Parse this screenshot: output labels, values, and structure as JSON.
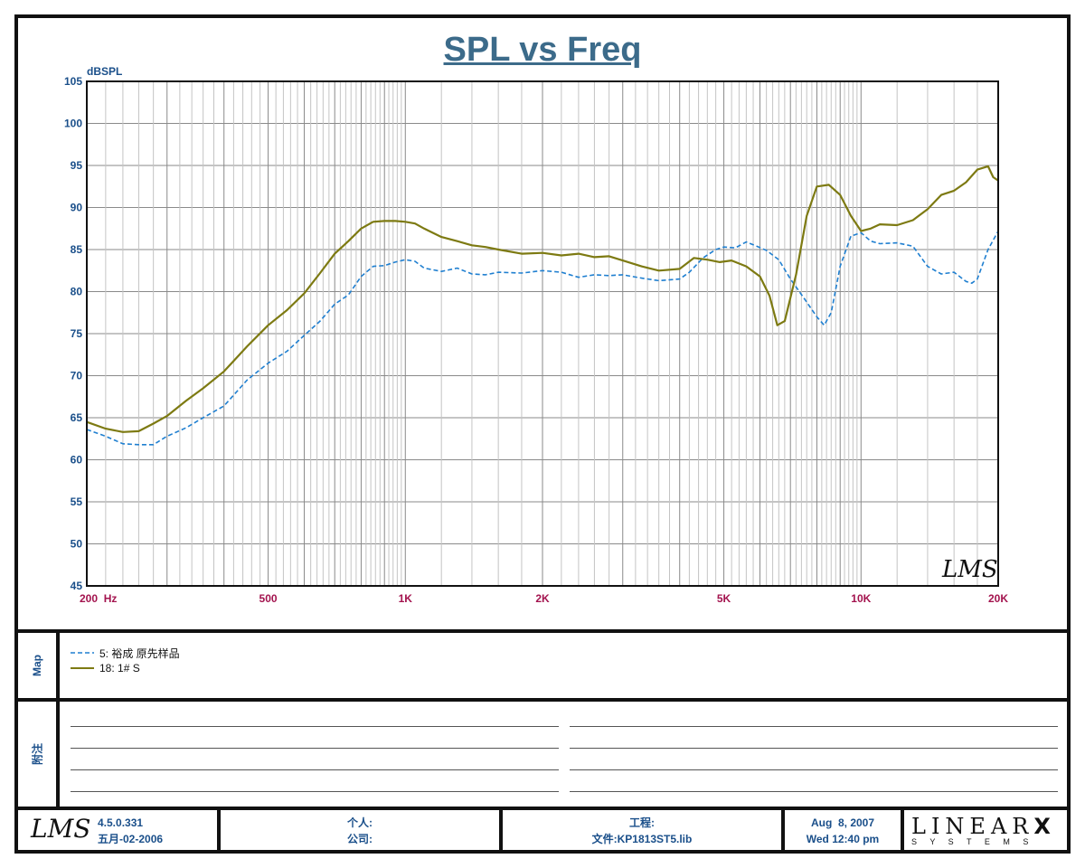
{
  "chart_data": {
    "type": "line",
    "title": "SPL vs Freq",
    "ylabel": "dBSPL",
    "xscale": "log",
    "xlim": [
      200,
      20000
    ],
    "ylim": [
      45,
      105
    ],
    "grid": true,
    "yticks": [
      "105",
      "100",
      "95",
      "90",
      "85",
      "80",
      "75",
      "70",
      "65",
      "60",
      "55",
      "50",
      "45"
    ],
    "xticks": [
      {
        "value": 200,
        "label": "200  Hz"
      },
      {
        "value": 500,
        "label": "500"
      },
      {
        "value": 1000,
        "label": "1K"
      },
      {
        "value": 2000,
        "label": "2K"
      },
      {
        "value": 5000,
        "label": "5K"
      },
      {
        "value": 10000,
        "label": "10K"
      },
      {
        "value": 20000,
        "label": "20K"
      }
    ],
    "series": [
      {
        "name": "5: 裕成 原先样品",
        "color": "#1f7fd0",
        "dash": true,
        "points": [
          [
            200,
            63.6
          ],
          [
            220,
            62.8
          ],
          [
            240,
            61.9
          ],
          [
            260,
            61.8
          ],
          [
            280,
            61.8
          ],
          [
            300,
            62.8
          ],
          [
            330,
            63.8
          ],
          [
            360,
            65.0
          ],
          [
            400,
            66.4
          ],
          [
            450,
            69.5
          ],
          [
            500,
            71.5
          ],
          [
            550,
            72.9
          ],
          [
            600,
            74.8
          ],
          [
            650,
            76.5
          ],
          [
            700,
            78.5
          ],
          [
            750,
            79.6
          ],
          [
            800,
            81.8
          ],
          [
            850,
            83.0
          ],
          [
            900,
            83.1
          ],
          [
            950,
            83.5
          ],
          [
            1000,
            83.8
          ],
          [
            1050,
            83.6
          ],
          [
            1100,
            82.8
          ],
          [
            1200,
            82.4
          ],
          [
            1300,
            82.8
          ],
          [
            1400,
            82.1
          ],
          [
            1500,
            82.0
          ],
          [
            1600,
            82.3
          ],
          [
            1800,
            82.2
          ],
          [
            2000,
            82.5
          ],
          [
            2200,
            82.3
          ],
          [
            2400,
            81.7
          ],
          [
            2600,
            82.0
          ],
          [
            2800,
            81.9
          ],
          [
            3000,
            82.0
          ],
          [
            3300,
            81.6
          ],
          [
            3600,
            81.3
          ],
          [
            4000,
            81.5
          ],
          [
            4200,
            82.3
          ],
          [
            4500,
            84.0
          ],
          [
            4800,
            85.0
          ],
          [
            5000,
            85.3
          ],
          [
            5300,
            85.2
          ],
          [
            5600,
            85.9
          ],
          [
            5900,
            85.4
          ],
          [
            6200,
            84.9
          ],
          [
            6600,
            83.8
          ],
          [
            7000,
            81.5
          ],
          [
            7500,
            79.2
          ],
          [
            8000,
            77.0
          ],
          [
            8300,
            76.0
          ],
          [
            8600,
            77.5
          ],
          [
            9000,
            83.0
          ],
          [
            9500,
            86.6
          ],
          [
            10000,
            87.0
          ],
          [
            10500,
            86.0
          ],
          [
            11000,
            85.7
          ],
          [
            12000,
            85.8
          ],
          [
            13000,
            85.4
          ],
          [
            14000,
            83.0
          ],
          [
            15000,
            82.1
          ],
          [
            16000,
            82.3
          ],
          [
            17000,
            81.2
          ],
          [
            17500,
            81.0
          ],
          [
            18000,
            81.5
          ],
          [
            19000,
            85.0
          ],
          [
            20000,
            87.2
          ]
        ]
      },
      {
        "name": "18: 1# S",
        "color": "#7d7a12",
        "dash": false,
        "points": [
          [
            200,
            64.5
          ],
          [
            220,
            63.7
          ],
          [
            240,
            63.3
          ],
          [
            260,
            63.4
          ],
          [
            280,
            64.3
          ],
          [
            300,
            65.2
          ],
          [
            330,
            67.0
          ],
          [
            360,
            68.5
          ],
          [
            400,
            70.5
          ],
          [
            450,
            73.5
          ],
          [
            500,
            76.0
          ],
          [
            550,
            77.8
          ],
          [
            600,
            79.8
          ],
          [
            650,
            82.2
          ],
          [
            700,
            84.5
          ],
          [
            750,
            86.0
          ],
          [
            800,
            87.5
          ],
          [
            850,
            88.3
          ],
          [
            900,
            88.4
          ],
          [
            950,
            88.4
          ],
          [
            1000,
            88.3
          ],
          [
            1050,
            88.1
          ],
          [
            1100,
            87.5
          ],
          [
            1200,
            86.5
          ],
          [
            1300,
            86.0
          ],
          [
            1400,
            85.5
          ],
          [
            1500,
            85.3
          ],
          [
            1600,
            85.0
          ],
          [
            1800,
            84.5
          ],
          [
            2000,
            84.6
          ],
          [
            2200,
            84.3
          ],
          [
            2400,
            84.5
          ],
          [
            2600,
            84.1
          ],
          [
            2800,
            84.2
          ],
          [
            3000,
            83.7
          ],
          [
            3300,
            83.0
          ],
          [
            3600,
            82.5
          ],
          [
            4000,
            82.7
          ],
          [
            4300,
            84.0
          ],
          [
            4600,
            83.8
          ],
          [
            4900,
            83.5
          ],
          [
            5200,
            83.7
          ],
          [
            5600,
            83.0
          ],
          [
            6000,
            81.8
          ],
          [
            6300,
            79.5
          ],
          [
            6550,
            76.0
          ],
          [
            6800,
            76.5
          ],
          [
            7200,
            82.0
          ],
          [
            7600,
            89.0
          ],
          [
            8000,
            92.5
          ],
          [
            8500,
            92.7
          ],
          [
            9000,
            91.5
          ],
          [
            9500,
            89.0
          ],
          [
            10000,
            87.2
          ],
          [
            10500,
            87.5
          ],
          [
            11000,
            88.0
          ],
          [
            12000,
            87.9
          ],
          [
            13000,
            88.5
          ],
          [
            14000,
            89.8
          ],
          [
            15000,
            91.5
          ],
          [
            16000,
            92.0
          ],
          [
            17000,
            93.0
          ],
          [
            18000,
            94.5
          ],
          [
            19000,
            94.9
          ],
          [
            19500,
            93.6
          ],
          [
            20000,
            93.2
          ]
        ]
      }
    ]
  },
  "watermark": "LMS",
  "map_panel": {
    "label": "Map",
    "items": [
      "5: 裕成 原先样品",
      "18: 1# S"
    ]
  },
  "notes_panel": {
    "label": "附注"
  },
  "footer": {
    "logo_text": "LMS",
    "version": "4.5.0.331",
    "build_date": "五月-02-2006",
    "person_label": "个人:",
    "company_label": "公司:",
    "project_label": "工程:",
    "file_label": "文件:KP1813ST5.lib",
    "date": "Aug  8, 2007",
    "time": "Wed 12:40 pm",
    "brand_top": "LINEAR",
    "brand_x": "X",
    "brand_bottom": "S Y S T E M S"
  }
}
